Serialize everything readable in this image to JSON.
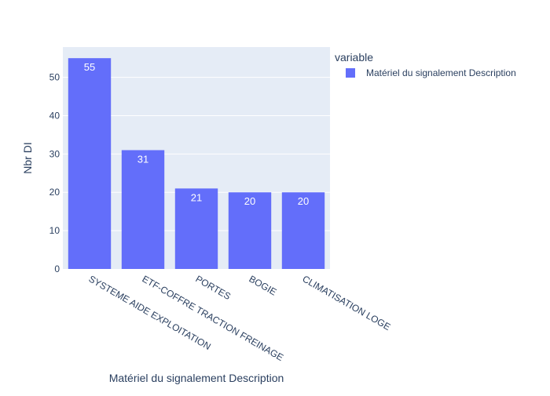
{
  "chart_data": {
    "type": "bar",
    "categories": [
      "SYSTEME AIDE EXPLOITATION",
      "ETF-COFFRE TRACTION FREINAGE",
      "PORTES",
      "BOGIE",
      "CLIMATISATION LOGE"
    ],
    "series": [
      {
        "name": "Matériel du signalement Description",
        "values": [
          55,
          31,
          21,
          20,
          20
        ]
      }
    ],
    "data_labels": [
      "55",
      "31",
      "21",
      "20",
      "20"
    ],
    "xlabel": "Matériel du signalement Description",
    "ylabel": "Nbr DI",
    "ylim": [
      0,
      57.9
    ],
    "yticks": [
      0,
      10,
      20,
      30,
      40,
      50
    ],
    "legend": {
      "title": "variable",
      "position": "top-right"
    },
    "grid": true,
    "colors": {
      "bar": "#636efa",
      "plot_bg": "#e5ecf6",
      "grid": "#ffffff",
      "text": "#2a3f5f",
      "label_text": "#ffffff"
    }
  }
}
